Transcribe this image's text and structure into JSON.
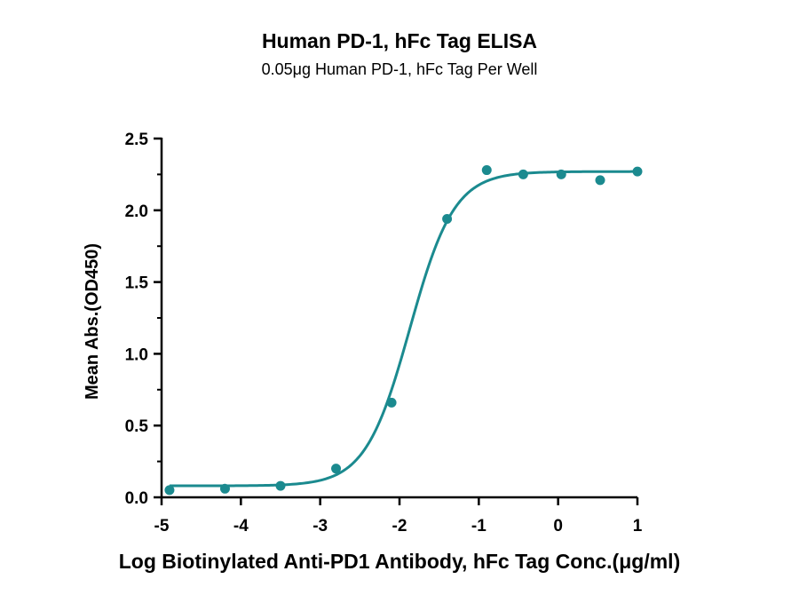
{
  "chart_data": {
    "type": "scatter",
    "title": "Human PD-1, hFc Tag ELISA",
    "subtitle": "0.05μg Human PD-1, hFc Tag Per Well",
    "xlabel": "Log Biotinylated Anti-PD1 Antibody, hFc Tag Conc.(μg/ml)",
    "ylabel": "Mean Abs.(OD450)",
    "xlim": [
      -5,
      1
    ],
    "ylim": [
      0,
      2.5
    ],
    "x_ticks": [
      "-5",
      "-4",
      "-3",
      "-2",
      "-1",
      "0",
      "1"
    ],
    "y_ticks": [
      "0.0",
      "0.5",
      "1.0",
      "1.5",
      "2.0",
      "2.5"
    ],
    "grid": false,
    "series": [
      {
        "color": "#1b8a8f",
        "x": [
          -4.9,
          -4.2,
          -3.5,
          -2.8,
          -2.1,
          -1.4,
          -0.9,
          -0.44,
          0.04,
          0.53,
          1.0
        ],
        "y": [
          0.05,
          0.06,
          0.08,
          0.2,
          0.66,
          1.94,
          2.28,
          2.25,
          2.25,
          2.21,
          2.27
        ],
        "fit": {
          "model": "4PL",
          "bottom": 0.08,
          "top": 2.27,
          "log_ec50": -1.87,
          "hill_slope": 1.55
        }
      }
    ]
  }
}
